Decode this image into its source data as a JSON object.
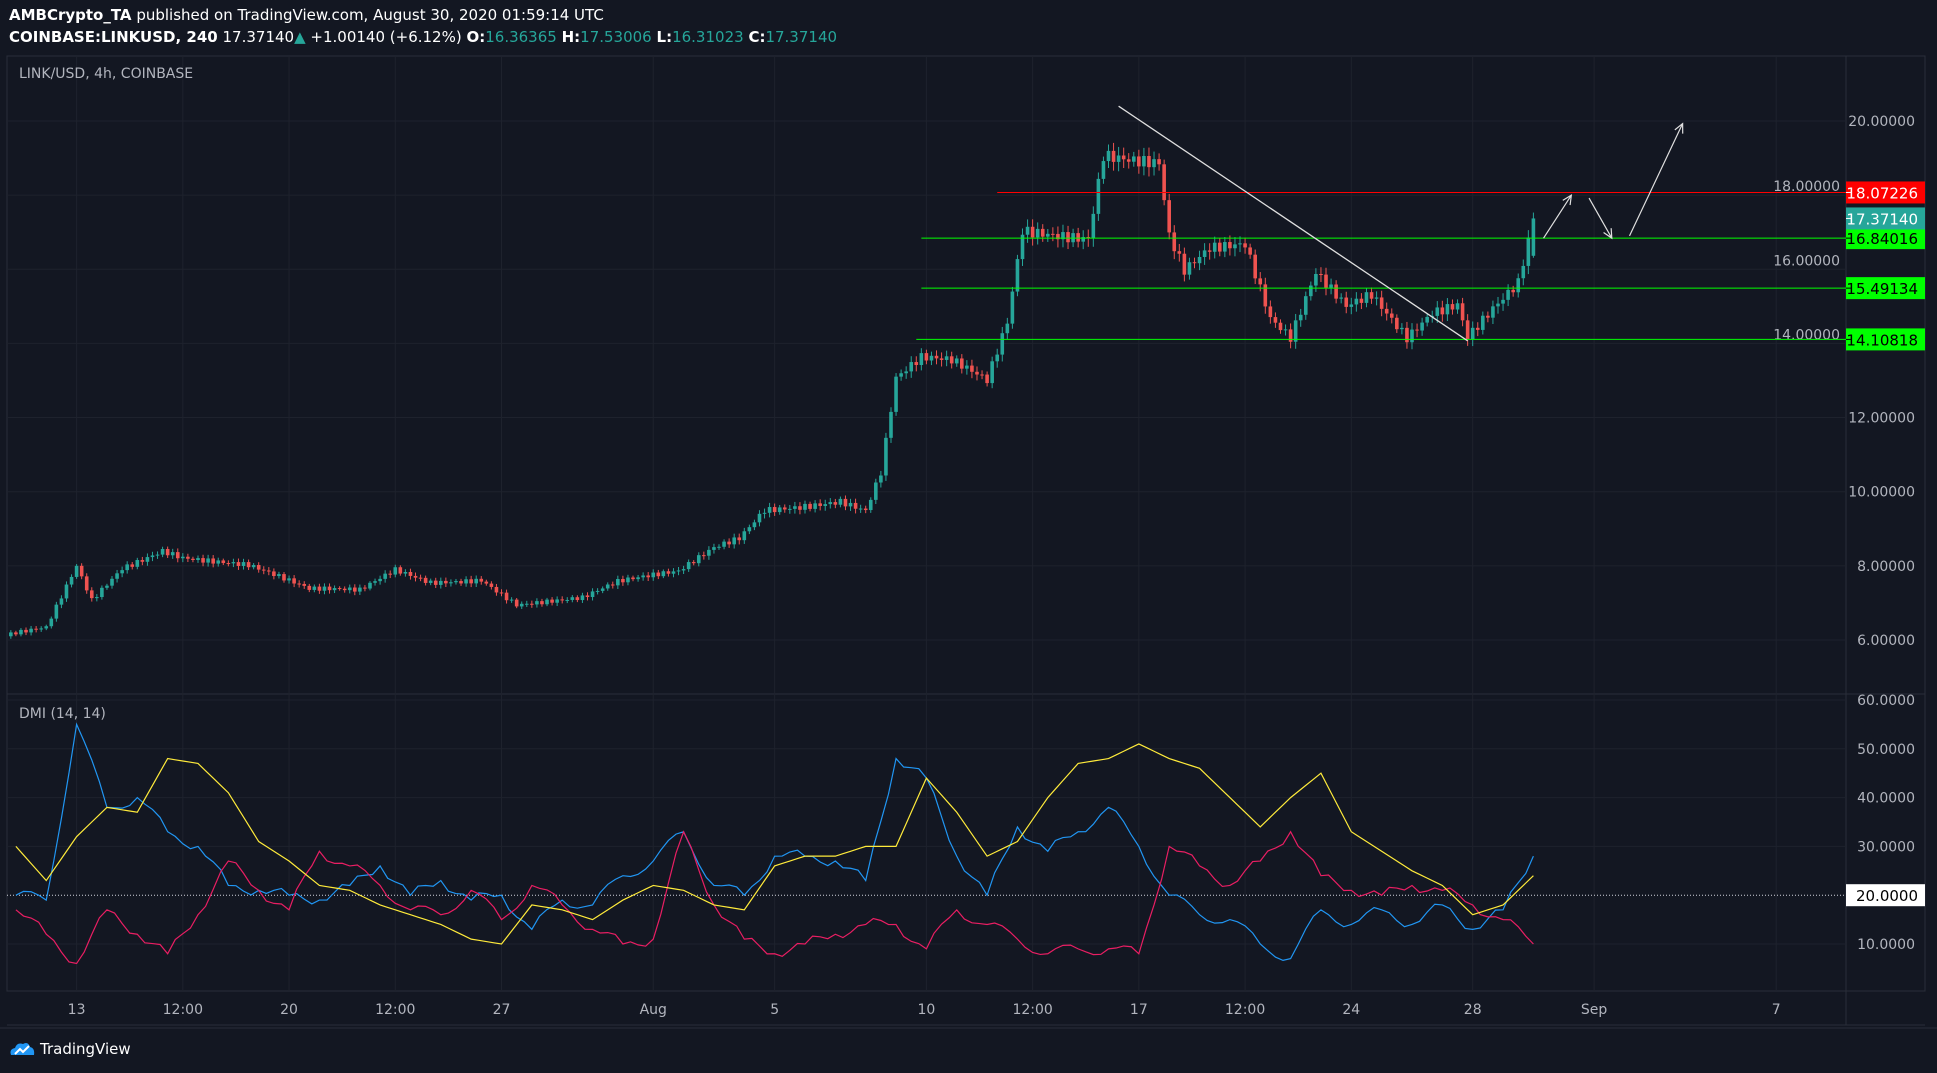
{
  "header": {
    "author": "AMBCrypto_TA",
    "published": "published on TradingView.com, August 30, 2020 01:59:14 UTC",
    "symbol": "COINBASE:LINKUSD, 240",
    "last": "17.37140",
    "change": "+1.00140 (+6.12%)",
    "o_label": "O:",
    "o": "16.36365",
    "h_label": "H:",
    "h": "17.53006",
    "l_label": "L:",
    "l": "16.31023",
    "c_label": "C:",
    "c": "17.37140"
  },
  "main_pane_title": "LINK/USD, 4h, COINBASE",
  "dmi_pane_title": "DMI (14, 14)",
  "brand": "TradingView",
  "colors": {
    "background": "#131722",
    "up": "#26a69a",
    "down": "#ef5350",
    "plus_di": "#2196f3",
    "minus_di": "#e91e63",
    "adx": "#ffeb3b",
    "resistance": "#ff0000",
    "support": "#00ff00"
  },
  "chart_data": [
    {
      "type": "candlestick",
      "title": "LINK/USD, 4h, COINBASE",
      "ylim": [
        5,
        21
      ],
      "y_ticks": [
        "20.00000",
        "18.00000",
        "16.00000",
        "14.00000",
        "12.00000",
        "10.00000",
        "8.00000",
        "6.00000"
      ],
      "x_ticks": [
        {
          "label": "13",
          "date": "2020-07-13T00:00"
        },
        {
          "label": "12:00",
          "date": "2020-07-16T12:00"
        },
        {
          "label": "20",
          "date": "2020-07-20T00:00"
        },
        {
          "label": "12:00",
          "date": "2020-07-23T12:00"
        },
        {
          "label": "27",
          "date": "2020-07-27T00:00"
        },
        {
          "label": "Aug",
          "date": "2020-08-01T00:00"
        },
        {
          "label": "5",
          "date": "2020-08-05T00:00"
        },
        {
          "label": "10",
          "date": "2020-08-10T00:00"
        },
        {
          "label": "12:00",
          "date": "2020-08-13T12:00"
        },
        {
          "label": "17",
          "date": "2020-08-17T00:00"
        },
        {
          "label": "12:00",
          "date": "2020-08-20T12:00"
        },
        {
          "label": "24",
          "date": "2020-08-24T00:00"
        },
        {
          "label": "28",
          "date": "2020-08-28T00:00"
        },
        {
          "label": "Sep",
          "date": "2020-09-01T00:00"
        },
        {
          "label": "7",
          "date": "2020-09-07T00:00"
        }
      ],
      "close_path": [
        [
          "2020-07-10T20:00",
          6.1
        ],
        [
          "2020-07-12T00:00",
          6.3
        ],
        [
          "2020-07-13T00:00",
          8.0
        ],
        [
          "2020-07-13T12:00",
          7.1
        ],
        [
          "2020-07-14T12:00",
          8.0
        ],
        [
          "2020-07-15T20:00",
          8.5
        ],
        [
          "2020-07-16T12:00",
          8.3
        ],
        [
          "2020-07-18T16:00",
          8.0
        ],
        [
          "2020-07-20T16:00",
          7.3
        ],
        [
          "2020-07-22T08:00",
          7.3
        ],
        [
          "2020-07-23T12:00",
          7.9
        ],
        [
          "2020-07-24T16:00",
          7.6
        ],
        [
          "2020-07-26T08:00",
          7.7
        ],
        [
          "2020-07-27T12:00",
          7.0
        ],
        [
          "2020-07-29T16:00",
          7.1
        ],
        [
          "2020-07-30T20:00",
          7.5
        ],
        [
          "2020-08-01T20:00",
          7.8
        ],
        [
          "2020-08-03T00:00",
          8.5
        ],
        [
          "2020-08-03T20:00",
          8.8
        ],
        [
          "2020-08-04T16:00",
          9.6
        ],
        [
          "2020-08-07T04:00",
          9.8
        ],
        [
          "2020-08-08T00:00",
          9.5
        ],
        [
          "2020-08-08T12:00",
          10.5
        ],
        [
          "2020-08-09T00:00",
          13.0
        ],
        [
          "2020-08-09T20:00",
          13.5
        ],
        [
          "2020-08-10T20:00",
          13.4
        ],
        [
          "2020-08-12T00:00",
          12.9
        ],
        [
          "2020-08-12T16:00",
          14.5
        ],
        [
          "2020-08-13T04:00",
          17.0
        ],
        [
          "2020-08-14T00:00",
          17.0
        ],
        [
          "2020-08-15T08:00",
          17.0
        ],
        [
          "2020-08-15T20:00",
          19.3
        ],
        [
          "2020-08-16T12:00",
          19.2
        ],
        [
          "2020-08-17T16:00",
          19.0
        ],
        [
          "2020-08-18T00:00",
          17.0
        ],
        [
          "2020-08-18T12:00",
          16.0
        ],
        [
          "2020-08-19T08:00",
          16.5
        ],
        [
          "2020-08-20T12:00",
          16.5
        ],
        [
          "2020-08-21T08:00",
          14.5
        ],
        [
          "2020-08-22T00:00",
          14.0
        ],
        [
          "2020-08-22T20:00",
          15.8
        ],
        [
          "2020-08-23T20:00",
          15.0
        ],
        [
          "2020-08-24T16:00",
          15.4
        ],
        [
          "2020-08-25T20:00",
          14.3
        ],
        [
          "2020-08-26T16:00",
          15.0
        ],
        [
          "2020-08-27T12:00",
          15.2
        ],
        [
          "2020-08-27T20:00",
          14.3
        ],
        [
          "2020-08-28T16:00",
          15.0
        ],
        [
          "2020-08-29T12:00",
          15.6
        ],
        [
          "2020-08-29T20:00",
          16.7
        ],
        [
          "2020-08-30T00:00",
          17.3714
        ]
      ],
      "last_candle": {
        "date": "2020-08-30T00:00",
        "open": 16.36365,
        "high": 17.53006,
        "low": 16.31023,
        "close": 17.3714
      },
      "levels": [
        {
          "value": 18.07226,
          "label": "18.07226",
          "color": "#ff0000",
          "text_color": "#ffffff",
          "from": "2020-08-12T08:00"
        },
        {
          "value": 16.84016,
          "label": "16.84016",
          "color": "#00ff00",
          "text_color": "#000000",
          "from": "2020-08-09T20:00"
        },
        {
          "value": 15.49134,
          "label": "15.49134",
          "color": "#00ff00",
          "text_color": "#000000",
          "from": "2020-08-09T20:00"
        },
        {
          "value": 14.10818,
          "label": "14.10818",
          "color": "#00ff00",
          "text_color": "#000000",
          "from": "2020-08-09T16:00"
        }
      ],
      "last_price_label": {
        "value": 17.3714,
        "label": "17.37140",
        "color": "#26a69a"
      },
      "trendline": [
        [
          "2020-08-16T08:00",
          20.4
        ],
        [
          "2020-08-27T20:00",
          14.07
        ]
      ],
      "arrows": [
        [
          [
            "2020-08-30T08:00",
            16.84
          ],
          [
            "2020-08-31T06:00",
            18.0
          ]
        ],
        [
          [
            "2020-08-31T20:00",
            17.92
          ],
          [
            "2020-09-01T14:00",
            16.84
          ]
        ],
        [
          [
            "2020-09-02T04:00",
            16.9
          ],
          [
            "2020-09-03T22:00",
            19.93
          ]
        ]
      ]
    },
    {
      "type": "line",
      "title": "DMI (14, 14)",
      "ylim": [
        5,
        62
      ],
      "y_ticks": [
        "60.0000",
        "50.0000",
        "40.0000",
        "30.0000",
        "10.0000"
      ],
      "reference": {
        "value": 20,
        "label": "20.0000"
      },
      "x_start": "2020-07-11T00:00",
      "x_step": "1d",
      "series": [
        {
          "key": "plus_di",
          "color": "#2196f3",
          "values": [
            20,
            19,
            55,
            38,
            40,
            33,
            30,
            22,
            21,
            20,
            19,
            22,
            26,
            20,
            23,
            19,
            20,
            13,
            19,
            18,
            24,
            27,
            33,
            22,
            20,
            28,
            28,
            27,
            23,
            48,
            44,
            28,
            20,
            34,
            29,
            33,
            38,
            30,
            20,
            16,
            15,
            10,
            7,
            17,
            14,
            17,
            14,
            18,
            13,
            17,
            28
          ]
        },
        {
          "key": "minus_di",
          "color": "#e91e63",
          "values": [
            17,
            12,
            6,
            17,
            12,
            8,
            16,
            27,
            21,
            17,
            29,
            26,
            22,
            17,
            16,
            21,
            15,
            22,
            18,
            13,
            10,
            11,
            33,
            18,
            11,
            8,
            10,
            12,
            14,
            14,
            9,
            17,
            14,
            11,
            8,
            9,
            9,
            8,
            30,
            26,
            22,
            27,
            33,
            24,
            21,
            20,
            22,
            21,
            18,
            15,
            10
          ]
        },
        {
          "key": "adx",
          "color": "#ffeb3b",
          "values": [
            30,
            23,
            32,
            38,
            37,
            48,
            47,
            41,
            31,
            27,
            22,
            21,
            18,
            16,
            14,
            11,
            10,
            18,
            17,
            15,
            19,
            22,
            21,
            18,
            17,
            26,
            28,
            28,
            30,
            30,
            44,
            37,
            28,
            31,
            40,
            47,
            48,
            51,
            48,
            46,
            40,
            34,
            40,
            45,
            33,
            29,
            25,
            22,
            16,
            18,
            24
          ]
        }
      ]
    }
  ]
}
